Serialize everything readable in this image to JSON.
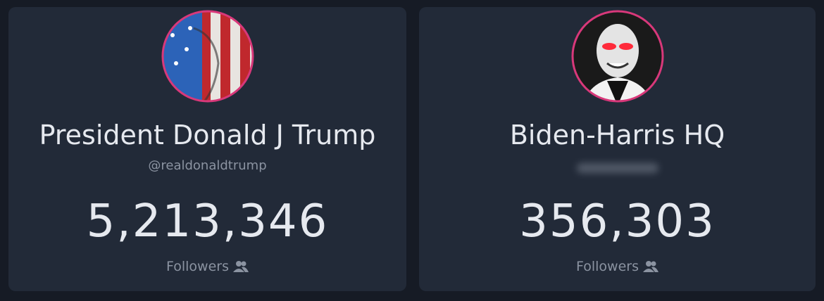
{
  "cards": [
    {
      "name": "President Donald J Trump",
      "handle": "@realdonaldtrump",
      "count": "5,213,346",
      "label": "Followers"
    },
    {
      "name": "Biden-Harris HQ",
      "count": "356,303",
      "label": "Followers"
    }
  ]
}
